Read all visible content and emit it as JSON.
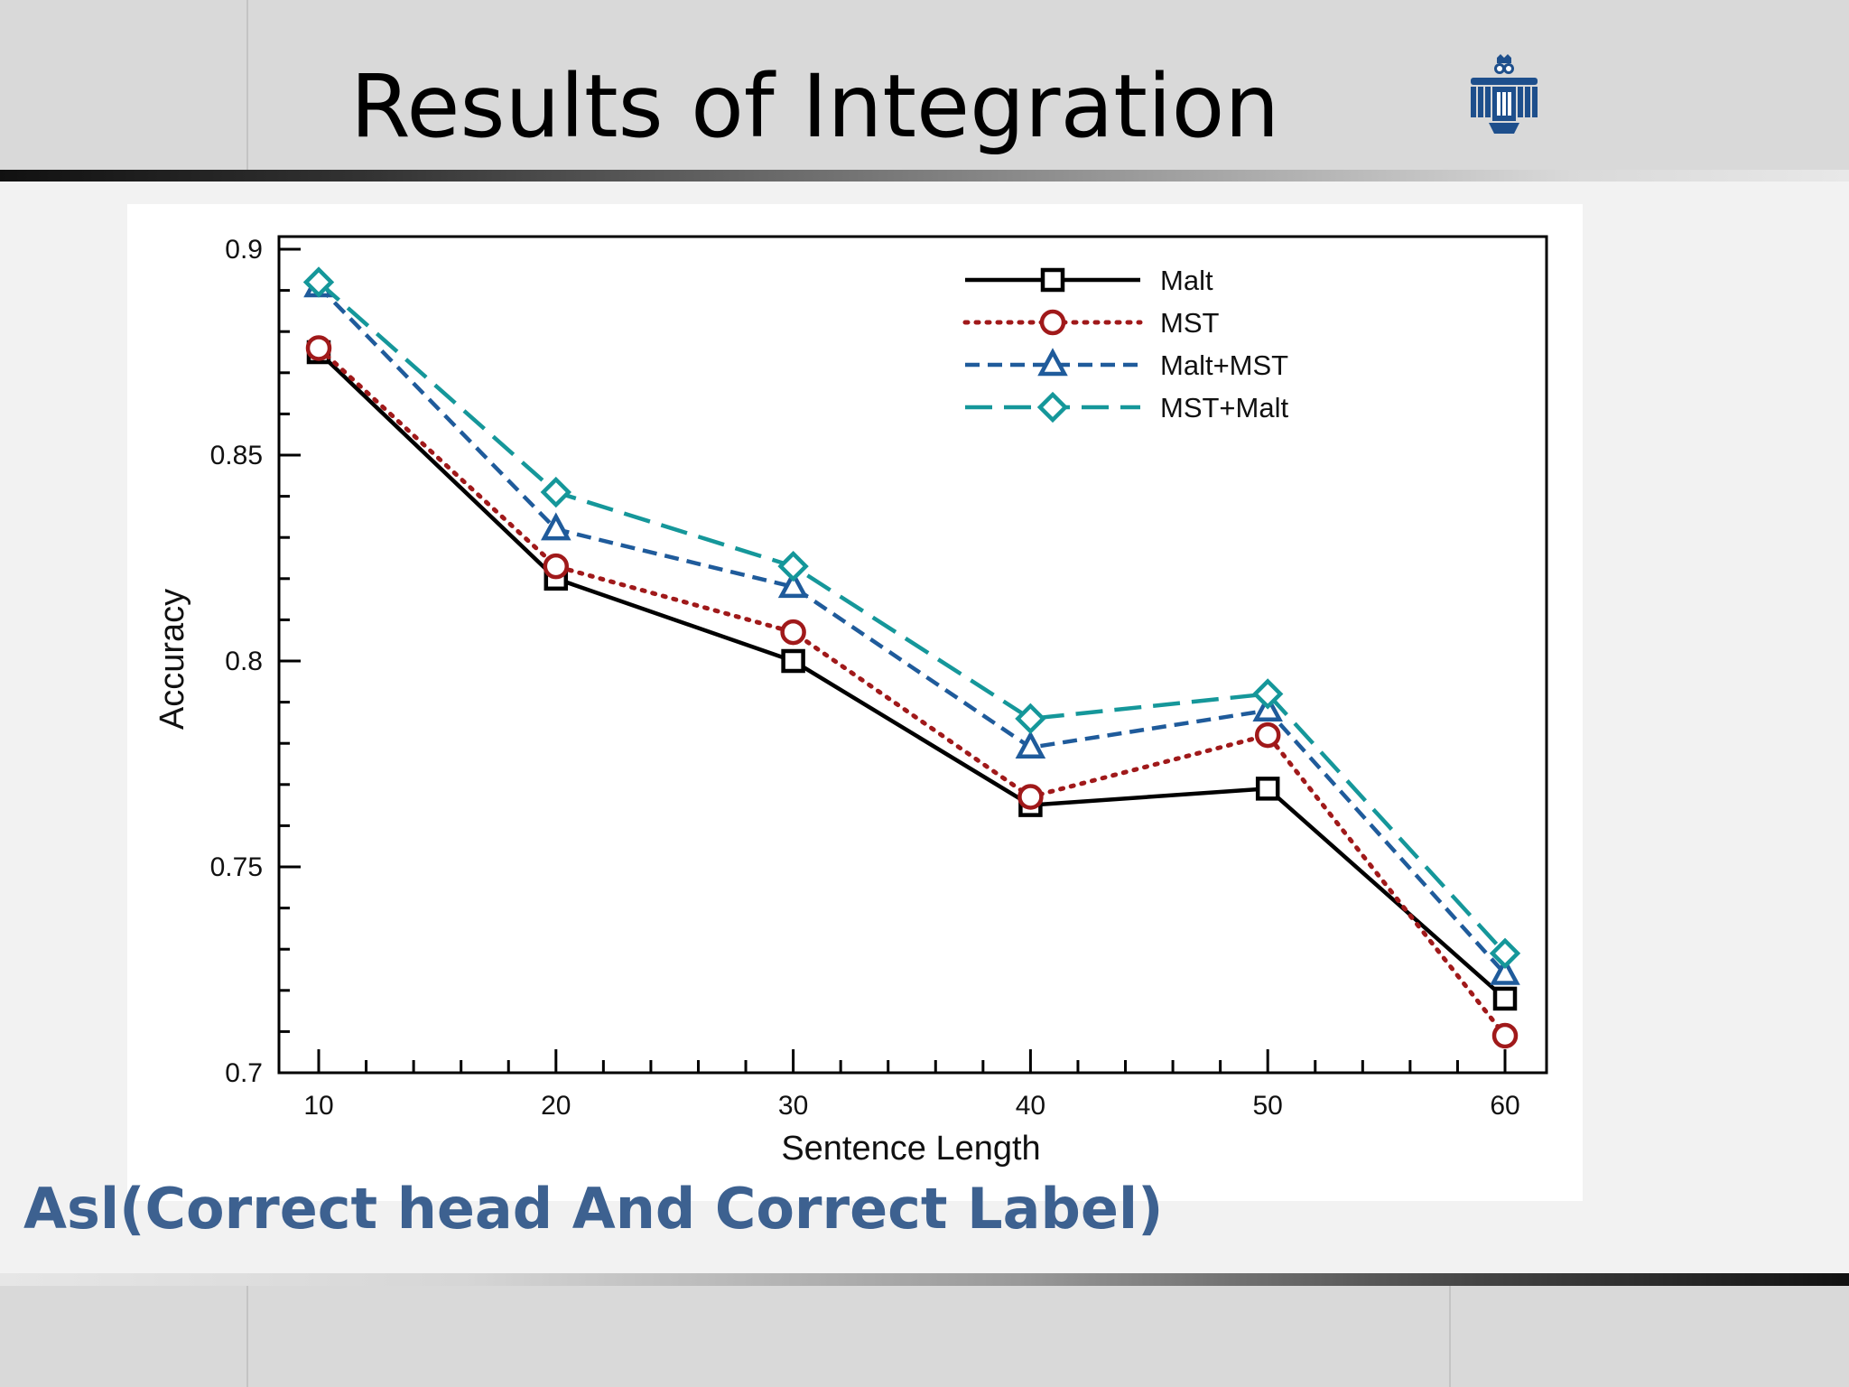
{
  "slide": {
    "title": "Results of Integration",
    "caption": "Asl(Correct head And Correct Label)",
    "logo_icon": "owl-logo-icon"
  },
  "colors": {
    "title": "#000000",
    "caption": "#3d6190",
    "band": "#d9d9d9",
    "logo": "#1e4f8c"
  },
  "chart_data": {
    "type": "line",
    "title": "",
    "xlabel": "Sentence Length",
    "ylabel": "Accuracy",
    "xlim": [
      10,
      60
    ],
    "ylim": [
      0.7,
      0.9
    ],
    "x": [
      10,
      20,
      30,
      40,
      50,
      60
    ],
    "x_ticks": [
      "10",
      "20",
      "30",
      "40",
      "50",
      "60"
    ],
    "y_ticks": [
      "0.9",
      "0.85",
      "0.8",
      "0.75",
      "0.7"
    ],
    "y_tick_values": [
      0.9,
      0.85,
      0.8,
      0.75,
      0.7
    ],
    "grid": false,
    "legend_position": "top-right",
    "series": [
      {
        "name": "Malt",
        "values": [
          0.875,
          0.82,
          0.8,
          0.765,
          0.769,
          0.718
        ],
        "color": "#000000",
        "dash": "solid",
        "marker": "square"
      },
      {
        "name": "MST",
        "values": [
          0.876,
          0.823,
          0.807,
          0.767,
          0.782,
          0.709
        ],
        "color": "#a0191a",
        "dash": "dotted",
        "marker": "circle"
      },
      {
        "name": "Malt+MST",
        "values": [
          0.891,
          0.832,
          0.818,
          0.779,
          0.788,
          0.724
        ],
        "color": "#1f5b9b",
        "dash": "dashed",
        "marker": "triangle"
      },
      {
        "name": "MST+Malt",
        "values": [
          0.892,
          0.841,
          0.823,
          0.786,
          0.792,
          0.729
        ],
        "color": "#15979a",
        "dash": "longdash",
        "marker": "diamond"
      }
    ]
  }
}
